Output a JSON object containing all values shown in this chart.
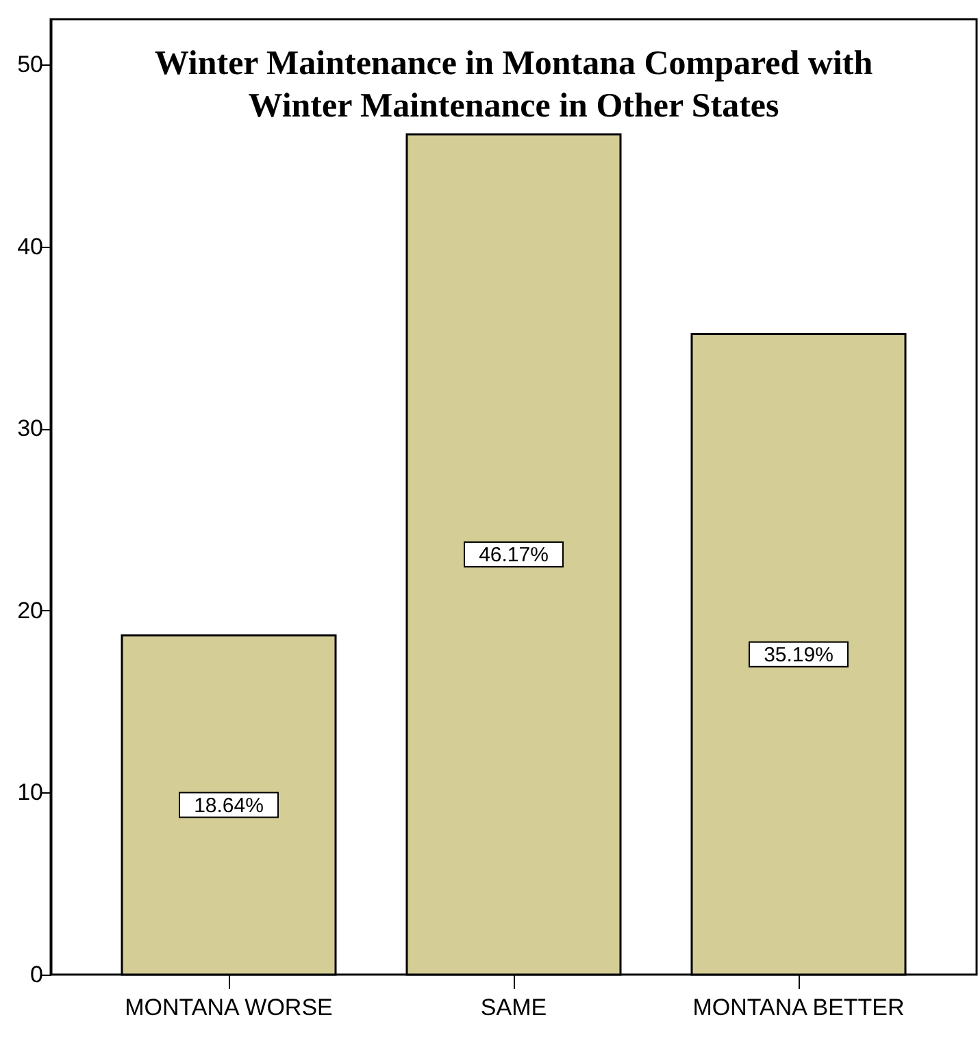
{
  "chart_data": {
    "type": "bar",
    "title": "Winter Maintenance in Montana Compared with\nWinter Maintenance in Other States",
    "categories": [
      "MONTANA WORSE",
      "SAME",
      "MONTANA BETTER"
    ],
    "values": [
      18.64,
      46.17,
      35.19
    ],
    "value_labels": [
      "18.64%",
      "46.17%",
      "35.19%"
    ],
    "color": "#d4cd96",
    "ylim": [
      0,
      52.5
    ],
    "yticks": [
      0,
      10,
      20,
      30,
      40,
      50
    ],
    "grid": false
  }
}
